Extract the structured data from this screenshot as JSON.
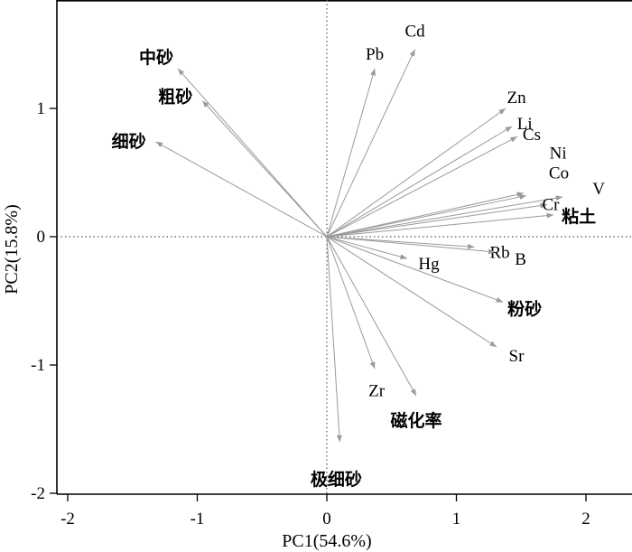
{
  "chart_data": {
    "type": "biplot",
    "xlabel": "PC1(54.6%)",
    "ylabel": "PC2(15.8%)",
    "xlim": [
      -2.05,
      2.35
    ],
    "ylim": [
      -2.05,
      1.7
    ],
    "xticks": [
      -2,
      -1,
      0,
      1,
      2
    ],
    "yticks": [
      -2,
      -1,
      0,
      1
    ],
    "zero_lines": true,
    "vectors": [
      {
        "label": "Cd",
        "x": 0.68,
        "y": 1.46
      },
      {
        "label": "Pb",
        "x": 0.37,
        "y": 1.31
      },
      {
        "label": "Zn",
        "x": 1.38,
        "y": 1.0
      },
      {
        "label": "Li",
        "x": 1.43,
        "y": 0.86
      },
      {
        "label": "Cs",
        "x": 1.47,
        "y": 0.78
      },
      {
        "label": "Ni",
        "x": 1.52,
        "y": 0.34
      },
      {
        "label": "Co",
        "x": 1.54,
        "y": 0.32
      },
      {
        "label": "V",
        "x": 1.82,
        "y": 0.31
      },
      {
        "label": "Cr",
        "x": 1.7,
        "y": 0.25
      },
      {
        "label": "粘土",
        "x": 1.75,
        "y": 0.17
      },
      {
        "label": "Rb",
        "x": 1.14,
        "y": -0.08
      },
      {
        "label": "B",
        "x": 1.3,
        "y": -0.12
      },
      {
        "label": "Hg",
        "x": 0.62,
        "y": -0.17
      },
      {
        "label": "粉砂",
        "x": 1.36,
        "y": -0.51
      },
      {
        "label": "Sr",
        "x": 1.31,
        "y": -0.86
      },
      {
        "label": "Zr",
        "x": 0.37,
        "y": -1.03
      },
      {
        "label": "磁化率",
        "x": 0.69,
        "y": -1.24
      },
      {
        "label": "极细砂",
        "x": 0.1,
        "y": -1.6
      },
      {
        "label": "中砂",
        "x": -1.15,
        "y": 1.31
      },
      {
        "label": "粗砂",
        "x": -0.96,
        "y": 1.06
      },
      {
        "label": "细砂",
        "x": -1.32,
        "y": 0.74
      }
    ]
  }
}
